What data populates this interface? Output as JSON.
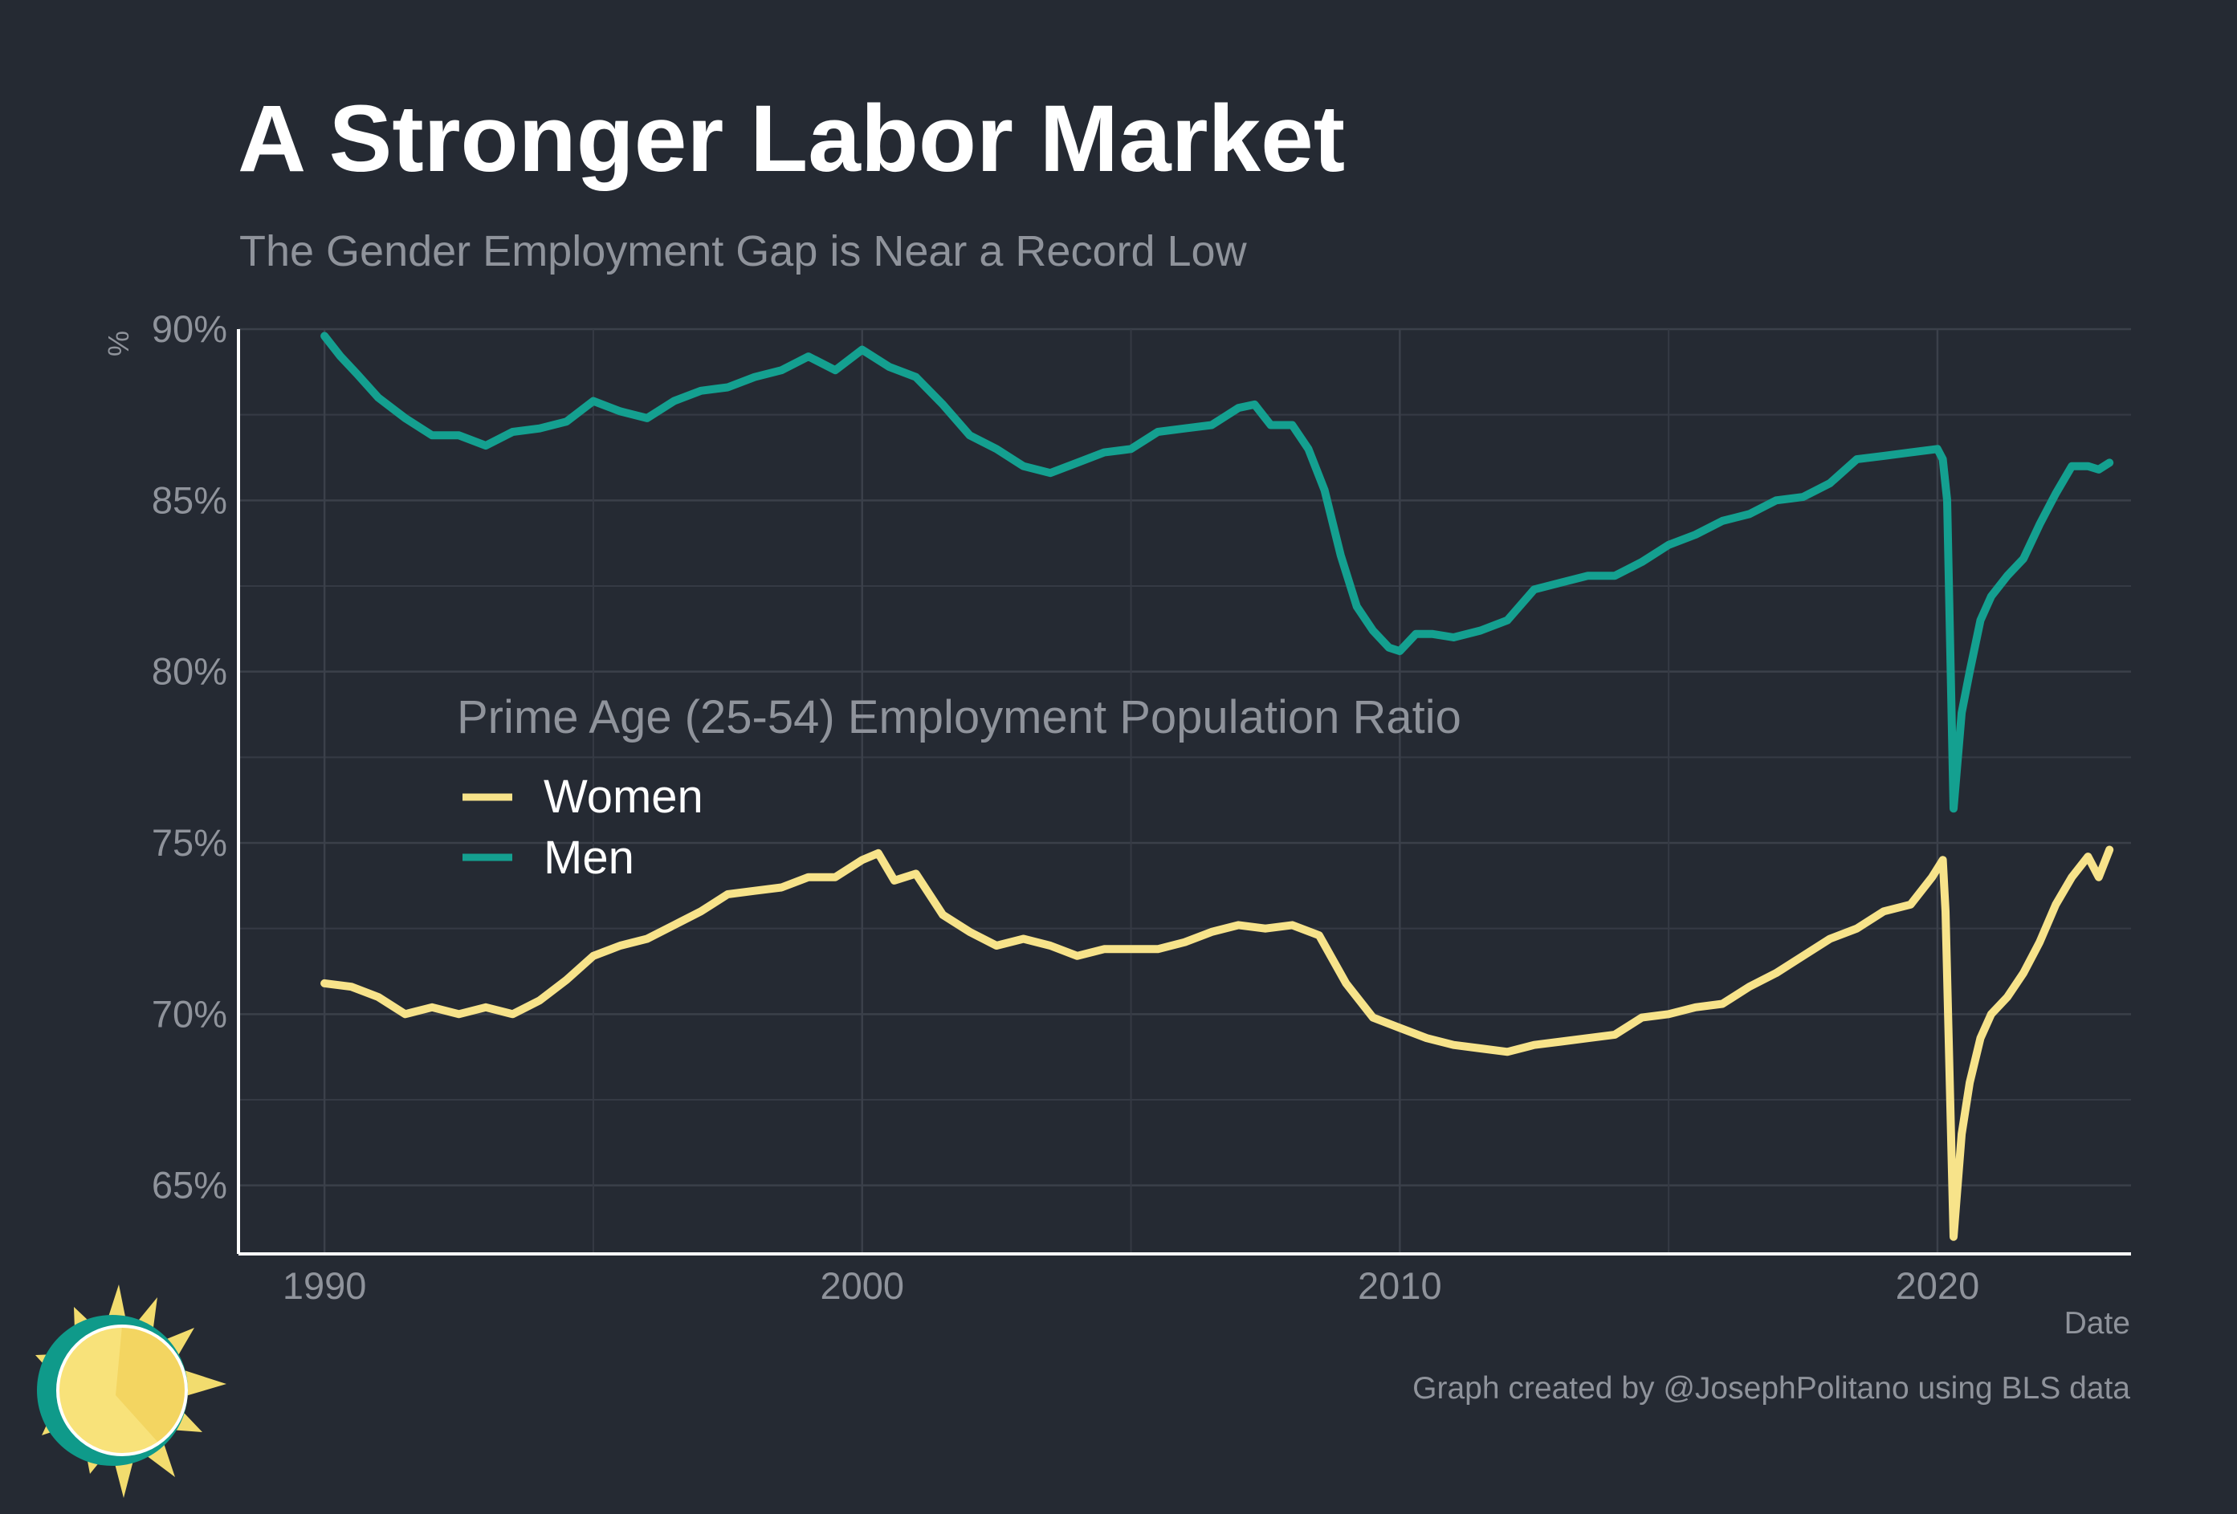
{
  "chart_data": {
    "type": "line",
    "title": "A Stronger Labor Market",
    "subtitle": "The Gender Employment Gap is Near a Record Low",
    "xlabel": "Date",
    "ylabel": "%",
    "caption": "Graph created by @JosephPolitano using BLS data",
    "legend_title": "Prime Age (25-54) Employment Population Ratio",
    "legend_position": "inside-center-left",
    "grid": true,
    "xlim": [
      1988.4,
      2023.6
    ],
    "ylim": [
      63.0,
      90.0
    ],
    "x_ticks": [
      {
        "value": 1990,
        "label": "1990"
      },
      {
        "value": 2000,
        "label": "2000"
      },
      {
        "value": 2010,
        "label": "2010"
      },
      {
        "value": 2020,
        "label": "2020"
      }
    ],
    "y_ticks": [
      {
        "value": 65,
        "label": "65%"
      },
      {
        "value": 70,
        "label": "70%"
      },
      {
        "value": 75,
        "label": "75%"
      },
      {
        "value": 80,
        "label": "80%"
      },
      {
        "value": 85,
        "label": "85%"
      },
      {
        "value": 90,
        "label": "90%"
      }
    ],
    "series": [
      {
        "name": "Women",
        "color": "#f7e38a",
        "points": [
          [
            1990.0,
            70.9
          ],
          [
            1990.5,
            70.8
          ],
          [
            1991.0,
            70.5
          ],
          [
            1991.5,
            70.0
          ],
          [
            1992.0,
            70.2
          ],
          [
            1992.5,
            70.0
          ],
          [
            1993.0,
            70.2
          ],
          [
            1993.5,
            70.0
          ],
          [
            1994.0,
            70.4
          ],
          [
            1994.5,
            71.0
          ],
          [
            1995.0,
            71.7
          ],
          [
            1995.5,
            72.0
          ],
          [
            1996.0,
            72.2
          ],
          [
            1996.5,
            72.6
          ],
          [
            1997.0,
            73.0
          ],
          [
            1997.5,
            73.5
          ],
          [
            1998.0,
            73.6
          ],
          [
            1998.5,
            73.7
          ],
          [
            1999.0,
            74.0
          ],
          [
            1999.5,
            74.0
          ],
          [
            2000.0,
            74.5
          ],
          [
            2000.3,
            74.7
          ],
          [
            2000.6,
            73.9
          ],
          [
            2001.0,
            74.1
          ],
          [
            2001.5,
            72.9
          ],
          [
            2002.0,
            72.4
          ],
          [
            2002.5,
            72.0
          ],
          [
            2003.0,
            72.2
          ],
          [
            2003.5,
            72.0
          ],
          [
            2004.0,
            71.7
          ],
          [
            2004.5,
            71.9
          ],
          [
            2005.0,
            71.9
          ],
          [
            2005.5,
            71.9
          ],
          [
            2006.0,
            72.1
          ],
          [
            2006.5,
            72.4
          ],
          [
            2007.0,
            72.6
          ],
          [
            2007.5,
            72.5
          ],
          [
            2008.0,
            72.6
          ],
          [
            2008.5,
            72.3
          ],
          [
            2009.0,
            70.9
          ],
          [
            2009.5,
            69.9
          ],
          [
            2010.0,
            69.6
          ],
          [
            2010.5,
            69.3
          ],
          [
            2011.0,
            69.1
          ],
          [
            2011.5,
            69.0
          ],
          [
            2012.0,
            68.9
          ],
          [
            2012.5,
            69.1
          ],
          [
            2013.0,
            69.2
          ],
          [
            2013.5,
            69.3
          ],
          [
            2014.0,
            69.4
          ],
          [
            2014.5,
            69.9
          ],
          [
            2015.0,
            70.0
          ],
          [
            2015.5,
            70.2
          ],
          [
            2016.0,
            70.3
          ],
          [
            2016.5,
            70.8
          ],
          [
            2017.0,
            71.2
          ],
          [
            2017.5,
            71.7
          ],
          [
            2018.0,
            72.2
          ],
          [
            2018.5,
            72.5
          ],
          [
            2019.0,
            73.0
          ],
          [
            2019.5,
            73.2
          ],
          [
            2019.9,
            74.0
          ],
          [
            2020.1,
            74.5
          ],
          [
            2020.15,
            73.0
          ],
          [
            2020.3,
            63.5
          ],
          [
            2020.45,
            66.5
          ],
          [
            2020.6,
            68.0
          ],
          [
            2020.8,
            69.3
          ],
          [
            2021.0,
            70.0
          ],
          [
            2021.3,
            70.5
          ],
          [
            2021.6,
            71.2
          ],
          [
            2021.9,
            72.1
          ],
          [
            2022.2,
            73.2
          ],
          [
            2022.5,
            74.0
          ],
          [
            2022.8,
            74.6
          ],
          [
            2023.0,
            74.0
          ],
          [
            2023.2,
            74.8
          ]
        ]
      },
      {
        "name": "Men",
        "color": "#14a090",
        "points": [
          [
            1990.0,
            89.8
          ],
          [
            1990.3,
            89.2
          ],
          [
            1990.6,
            88.7
          ],
          [
            1991.0,
            88.0
          ],
          [
            1991.5,
            87.4
          ],
          [
            1992.0,
            86.9
          ],
          [
            1992.5,
            86.9
          ],
          [
            1993.0,
            86.6
          ],
          [
            1993.5,
            87.0
          ],
          [
            1994.0,
            87.1
          ],
          [
            1994.5,
            87.3
          ],
          [
            1995.0,
            87.9
          ],
          [
            1995.5,
            87.6
          ],
          [
            1996.0,
            87.4
          ],
          [
            1996.5,
            87.9
          ],
          [
            1997.0,
            88.2
          ],
          [
            1997.5,
            88.3
          ],
          [
            1998.0,
            88.6
          ],
          [
            1998.5,
            88.8
          ],
          [
            1999.0,
            89.2
          ],
          [
            1999.5,
            88.8
          ],
          [
            2000.0,
            89.4
          ],
          [
            2000.5,
            88.9
          ],
          [
            2001.0,
            88.6
          ],
          [
            2001.5,
            87.8
          ],
          [
            2002.0,
            86.9
          ],
          [
            2002.5,
            86.5
          ],
          [
            2003.0,
            86.0
          ],
          [
            2003.5,
            85.8
          ],
          [
            2004.0,
            86.1
          ],
          [
            2004.5,
            86.4
          ],
          [
            2005.0,
            86.5
          ],
          [
            2005.5,
            87.0
          ],
          [
            2006.0,
            87.1
          ],
          [
            2006.5,
            87.2
          ],
          [
            2007.0,
            87.7
          ],
          [
            2007.3,
            87.8
          ],
          [
            2007.6,
            87.2
          ],
          [
            2008.0,
            87.2
          ],
          [
            2008.3,
            86.5
          ],
          [
            2008.6,
            85.3
          ],
          [
            2008.9,
            83.4
          ],
          [
            2009.2,
            81.9
          ],
          [
            2009.5,
            81.2
          ],
          [
            2009.8,
            80.7
          ],
          [
            2010.0,
            80.6
          ],
          [
            2010.3,
            81.1
          ],
          [
            2010.6,
            81.1
          ],
          [
            2011.0,
            81.0
          ],
          [
            2011.5,
            81.2
          ],
          [
            2012.0,
            81.5
          ],
          [
            2012.5,
            82.4
          ],
          [
            2013.0,
            82.6
          ],
          [
            2013.5,
            82.8
          ],
          [
            2014.0,
            82.8
          ],
          [
            2014.5,
            83.2
          ],
          [
            2015.0,
            83.7
          ],
          [
            2015.5,
            84.0
          ],
          [
            2016.0,
            84.4
          ],
          [
            2016.5,
            84.6
          ],
          [
            2017.0,
            85.0
          ],
          [
            2017.5,
            85.1
          ],
          [
            2018.0,
            85.5
          ],
          [
            2018.5,
            86.2
          ],
          [
            2019.0,
            86.3
          ],
          [
            2019.5,
            86.4
          ],
          [
            2020.0,
            86.5
          ],
          [
            2020.1,
            86.2
          ],
          [
            2020.18,
            85.0
          ],
          [
            2020.3,
            76.0
          ],
          [
            2020.45,
            78.8
          ],
          [
            2020.6,
            80.0
          ],
          [
            2020.8,
            81.5
          ],
          [
            2021.0,
            82.2
          ],
          [
            2021.3,
            82.8
          ],
          [
            2021.6,
            83.3
          ],
          [
            2021.9,
            84.3
          ],
          [
            2022.2,
            85.2
          ],
          [
            2022.5,
            86.0
          ],
          [
            2022.8,
            86.0
          ],
          [
            2023.0,
            85.9
          ],
          [
            2023.2,
            86.1
          ]
        ]
      }
    ]
  }
}
